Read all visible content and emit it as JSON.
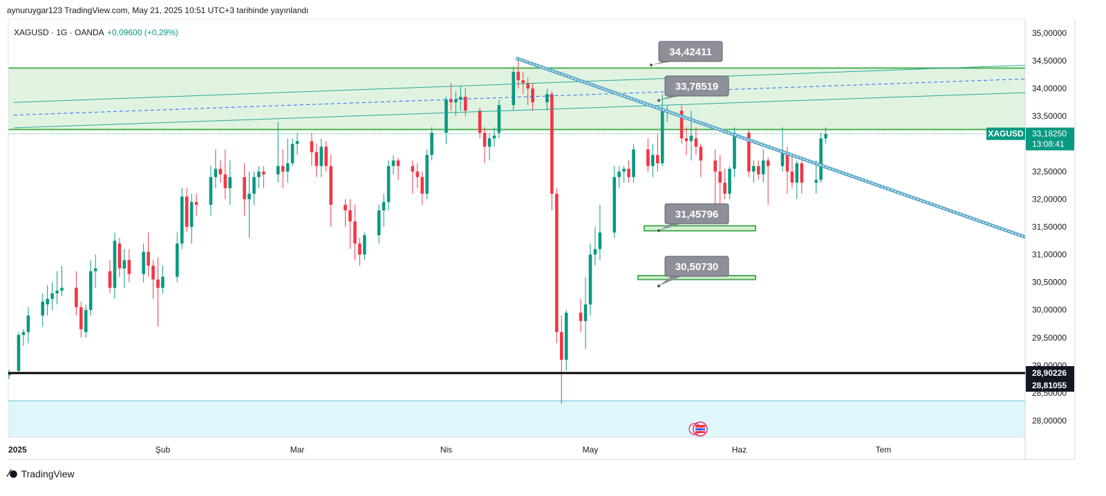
{
  "header": {
    "published": "aynuruygar123 TradingView.com, May 21, 2025 10:51 UTC+3 tarihinde yayınlandı"
  },
  "legend": {
    "symbol": "XAGUSD · 1G · OANDA",
    "change": "+0,09600 (+0,29%)"
  },
  "footer": {
    "brand": "TradingView",
    "logo_icon": "tradingview-logo-icon"
  },
  "colors": {
    "up": "#089981",
    "down": "#f23645",
    "zone_green": "#4caf50",
    "zone_fill": "#d6efd6",
    "channel": "#26a69a",
    "trend": "#5da9c9",
    "label_bg": "#8d8f99",
    "price_tag": "#089981",
    "support_line": "#000000",
    "bottom_zone": "#dff6fb"
  },
  "chart_data": {
    "type": "candlestick",
    "symbol": "XAGUSD",
    "timeframe": "1G",
    "y_range": [
      27.7,
      35.25
    ],
    "y_ticks": [
      {
        "v": 35.0,
        "label": "35,00000"
      },
      {
        "v": 34.5,
        "label": "34,50000"
      },
      {
        "v": 34.0,
        "label": "34,00000"
      },
      {
        "v": 33.5,
        "label": "33,50000"
      },
      {
        "v": 32.5,
        "label": "32,50000"
      },
      {
        "v": 32.0,
        "label": "32,00000"
      },
      {
        "v": 31.5,
        "label": "31,50000"
      },
      {
        "v": 31.0,
        "label": "31,00000"
      },
      {
        "v": 30.5,
        "label": "30,50000"
      },
      {
        "v": 30.0,
        "label": "30,00000"
      },
      {
        "v": 29.5,
        "label": "29,50000"
      },
      {
        "v": 29.0,
        "label": "29,00000"
      },
      {
        "v": 28.5,
        "label": "28,50000"
      },
      {
        "v": 28.0,
        "label": "28,00000"
      }
    ],
    "x_ticks": [
      {
        "day": 0,
        "label": "2025"
      },
      {
        "day": 31,
        "label": "Şub"
      },
      {
        "day": 59,
        "label": "Mar"
      },
      {
        "day": 90,
        "label": "Nis"
      },
      {
        "day": 120,
        "label": "May"
      },
      {
        "day": 151,
        "label": "Haz"
      },
      {
        "day": 181,
        "label": "Tem"
      }
    ],
    "candles": [
      [
        -1,
        28.82,
        28.92,
        28.75,
        28.85
      ],
      [
        1,
        28.9,
        29.6,
        28.88,
        29.55
      ],
      [
        2,
        29.55,
        29.65,
        29.35,
        29.6
      ],
      [
        3,
        29.6,
        30.05,
        29.4,
        29.9
      ],
      [
        6,
        29.9,
        30.3,
        29.7,
        30.15
      ],
      [
        7,
        30.1,
        30.45,
        29.9,
        30.2
      ],
      [
        8,
        30.2,
        30.5,
        30.0,
        30.3
      ],
      [
        9,
        30.3,
        30.7,
        30.1,
        30.35
      ],
      [
        10,
        30.35,
        30.8,
        30.25,
        30.4
      ],
      [
        13,
        30.4,
        30.7,
        29.9,
        30.05
      ],
      [
        14,
        30.05,
        30.15,
        29.5,
        29.65
      ],
      [
        15,
        29.6,
        30.1,
        29.5,
        30.0
      ],
      [
        16,
        30.0,
        30.9,
        29.9,
        30.7
      ],
      [
        17,
        30.7,
        31.0,
        30.4,
        30.75
      ],
      [
        20,
        30.7,
        30.9,
        30.3,
        30.4
      ],
      [
        21,
        30.4,
        31.4,
        30.2,
        31.25
      ],
      [
        22,
        31.2,
        31.3,
        30.6,
        30.75
      ],
      [
        23,
        30.75,
        31.1,
        30.4,
        30.9
      ],
      [
        24,
        30.9,
        31.1,
        30.5,
        30.65
      ],
      [
        27,
        30.65,
        31.2,
        30.5,
        31.05
      ],
      [
        28,
        31.05,
        31.4,
        30.6,
        30.8
      ],
      [
        29,
        30.8,
        30.9,
        30.2,
        30.55
      ],
      [
        30,
        30.55,
        30.95,
        29.7,
        30.4
      ],
      [
        31,
        30.4,
        30.8,
        30.3,
        30.6
      ],
      [
        34,
        30.6,
        31.4,
        30.5,
        31.2
      ],
      [
        35,
        31.2,
        32.2,
        31.1,
        32.05
      ],
      [
        36,
        32.05,
        32.2,
        31.4,
        31.5
      ],
      [
        37,
        31.5,
        32.1,
        31.2,
        31.95
      ],
      [
        38,
        31.95,
        32.1,
        31.7,
        31.9
      ],
      [
        41,
        31.9,
        32.6,
        31.7,
        32.4
      ],
      [
        42,
        32.4,
        32.9,
        32.2,
        32.55
      ],
      [
        43,
        32.55,
        32.7,
        32.3,
        32.45
      ],
      [
        44,
        32.45,
        32.9,
        32.0,
        32.2
      ],
      [
        45,
        32.2,
        32.7,
        31.9,
        32.4
      ],
      [
        48,
        32.4,
        32.65,
        31.7,
        32.0
      ],
      [
        49,
        32.0,
        32.5,
        31.3,
        32.1
      ],
      [
        50,
        32.1,
        32.5,
        31.9,
        32.4
      ],
      [
        51,
        32.4,
        32.6,
        32.2,
        32.5
      ],
      [
        52,
        32.5,
        32.6,
        32.2,
        32.45
      ],
      [
        55,
        32.45,
        33.4,
        32.3,
        32.6
      ],
      [
        56,
        32.6,
        32.9,
        32.2,
        32.5
      ],
      [
        57,
        32.5,
        33.1,
        32.3,
        32.65
      ],
      [
        58,
        32.65,
        33.1,
        32.6,
        33.0
      ],
      [
        59,
        33.0,
        33.2,
        32.8,
        33.05
      ],
      [
        62,
        33.05,
        33.2,
        32.6,
        32.85
      ],
      [
        63,
        32.85,
        33.0,
        32.4,
        32.6
      ],
      [
        64,
        32.6,
        33.1,
        32.4,
        32.95
      ],
      [
        65,
        32.95,
        33.05,
        32.5,
        32.6
      ],
      [
        66,
        32.6,
        32.8,
        31.5,
        31.9
      ],
      [
        69,
        31.9,
        32.0,
        31.5,
        31.8
      ],
      [
        70,
        31.8,
        32.0,
        31.1,
        31.6
      ],
      [
        71,
        31.6,
        31.9,
        30.9,
        31.2
      ],
      [
        72,
        31.2,
        31.3,
        30.8,
        31.0
      ],
      [
        73,
        31.0,
        31.4,
        30.9,
        31.35
      ],
      [
        76,
        31.35,
        31.9,
        31.2,
        31.8
      ],
      [
        77,
        31.8,
        32.1,
        31.5,
        31.95
      ],
      [
        78,
        31.95,
        32.7,
        31.8,
        32.6
      ],
      [
        79,
        32.6,
        32.8,
        32.45,
        32.7
      ],
      [
        80,
        32.7,
        32.75,
        32.35,
        32.6
      ],
      [
        83,
        32.6,
        32.7,
        32.1,
        32.5
      ],
      [
        84,
        32.5,
        32.65,
        32.2,
        32.4
      ],
      [
        85,
        32.4,
        32.5,
        31.9,
        32.1
      ],
      [
        86,
        32.1,
        32.9,
        32.0,
        32.8
      ],
      [
        87,
        32.8,
        33.3,
        32.7,
        33.2
      ],
      [
        90,
        33.2,
        33.85,
        33.0,
        33.8
      ],
      [
        91,
        33.8,
        34.1,
        33.6,
        33.75
      ],
      [
        92,
        33.75,
        33.95,
        33.5,
        33.8
      ],
      [
        93,
        33.8,
        34.05,
        33.6,
        33.85
      ],
      [
        94,
        33.85,
        34.0,
        33.5,
        33.6
      ],
      [
        97,
        33.6,
        33.65,
        33.1,
        33.2
      ],
      [
        98,
        33.2,
        33.3,
        32.65,
        32.95
      ],
      [
        99,
        32.95,
        33.2,
        32.7,
        33.1
      ],
      [
        100,
        33.1,
        33.3,
        32.95,
        33.15
      ],
      [
        101,
        33.2,
        33.8,
        33.1,
        33.7
      ],
      [
        104,
        33.7,
        34.4,
        33.6,
        34.3
      ],
      [
        105,
        34.3,
        34.55,
        34.0,
        34.15
      ],
      [
        106,
        34.15,
        34.3,
        33.9,
        34.1
      ],
      [
        107,
        34.1,
        34.2,
        33.7,
        34.0
      ],
      [
        108,
        34.0,
        34.1,
        33.6,
        33.75
      ],
      [
        111,
        33.75,
        34.0,
        33.6,
        33.9
      ],
      [
        112,
        33.9,
        33.95,
        31.8,
        32.1
      ],
      [
        113,
        32.1,
        32.2,
        29.4,
        29.6
      ],
      [
        114,
        29.6,
        29.9,
        28.3,
        29.1
      ],
      [
        115,
        29.1,
        30.0,
        28.9,
        29.95
      ],
      [
        118,
        29.95,
        30.2,
        29.6,
        29.8
      ],
      [
        119,
        29.8,
        30.6,
        29.3,
        30.1
      ],
      [
        120,
        30.1,
        31.2,
        29.9,
        31.0
      ],
      [
        121,
        31.0,
        31.5,
        30.8,
        31.1
      ],
      [
        122,
        31.1,
        31.9,
        30.9,
        31.4
      ],
      [
        125,
        31.4,
        32.6,
        31.3,
        32.4
      ],
      [
        126,
        32.4,
        32.6,
        32.2,
        32.5
      ],
      [
        127,
        32.5,
        32.6,
        32.3,
        32.55
      ],
      [
        128,
        32.55,
        32.7,
        32.3,
        32.4
      ],
      [
        129,
        32.4,
        33.0,
        32.3,
        32.9
      ],
      [
        132,
        32.9,
        33.1,
        32.5,
        32.6
      ],
      [
        133,
        32.6,
        33.0,
        32.4,
        32.8
      ],
      [
        134,
        32.8,
        33.2,
        32.5,
        32.65
      ],
      [
        135,
        32.65,
        33.9,
        32.6,
        33.6
      ],
      [
        136,
        33.6,
        33.7,
        33.4,
        33.6
      ],
      [
        139,
        33.6,
        33.7,
        33.0,
        33.1
      ],
      [
        140,
        33.1,
        33.3,
        32.8,
        33.05
      ],
      [
        141,
        33.05,
        33.6,
        32.7,
        33.15
      ],
      [
        142,
        33.1,
        33.3,
        32.8,
        32.95
      ],
      [
        143,
        32.95,
        33.0,
        32.4,
        32.7
      ],
      [
        146,
        32.7,
        32.9,
        31.7,
        32.5
      ],
      [
        147,
        32.5,
        32.8,
        31.9,
        32.3
      ],
      [
        148,
        32.3,
        32.55,
        32.0,
        32.1
      ],
      [
        149,
        32.1,
        32.6,
        32.0,
        32.55
      ],
      [
        150,
        32.55,
        33.3,
        32.4,
        33.2
      ],
      [
        153,
        33.2,
        33.25,
        32.4,
        32.5
      ],
      [
        154,
        32.5,
        32.7,
        32.3,
        32.6
      ],
      [
        155,
        32.6,
        32.7,
        32.35,
        32.45
      ],
      [
        156,
        32.45,
        32.9,
        32.3,
        32.7
      ],
      [
        157,
        32.7,
        32.75,
        31.9,
        32.6
      ],
      [
        160,
        32.6,
        33.3,
        32.5,
        32.85
      ],
      [
        161,
        32.85,
        32.95,
        32.1,
        32.5
      ],
      [
        162,
        32.5,
        32.8,
        32.2,
        32.3
      ],
      [
        163,
        32.3,
        32.7,
        32.0,
        32.65
      ],
      [
        164,
        32.65,
        32.7,
        32.1,
        32.3
      ],
      [
        167,
        32.3,
        32.7,
        32.1,
        32.35
      ],
      [
        168,
        32.35,
        33.2,
        32.3,
        33.1
      ],
      [
        169,
        33.1,
        33.3,
        33.0,
        33.18
      ]
    ],
    "zones": {
      "resistance_top": 34.37,
      "resistance_bottom": 33.26,
      "support_line": 28.86,
      "bottom_zone_top": 28.36,
      "support_box_1": [
        31.43,
        31.52
      ],
      "support_box_2": [
        30.55,
        30.62
      ]
    },
    "channel": {
      "upper": [
        [
          0,
          33.75
        ],
        [
          235,
          34.5
        ]
      ],
      "middle": [
        [
          0,
          33.52
        ],
        [
          235,
          34.25
        ]
      ],
      "lower": [
        [
          0,
          33.29
        ],
        [
          235,
          34.0
        ]
      ]
    },
    "trendline": [
      [
        104.5,
        34.55
      ],
      [
        235,
        30.57
      ]
    ],
    "callouts": [
      {
        "label": "34,42411",
        "value": 34.42411
      },
      {
        "label": "33,78519",
        "value": 33.78519
      },
      {
        "label": "31,45796",
        "value": 31.45796
      },
      {
        "label": "30,50730",
        "value": 30.5073
      }
    ],
    "last_price": {
      "symbol": "XAGUSD",
      "value": 33.1825,
      "label": "33,18250",
      "countdown": "13:08:41"
    },
    "axis_tags": [
      {
        "label": "28,90226",
        "value": 28.90226
      },
      {
        "label": "28,81055",
        "value": 28.81055
      }
    ]
  }
}
